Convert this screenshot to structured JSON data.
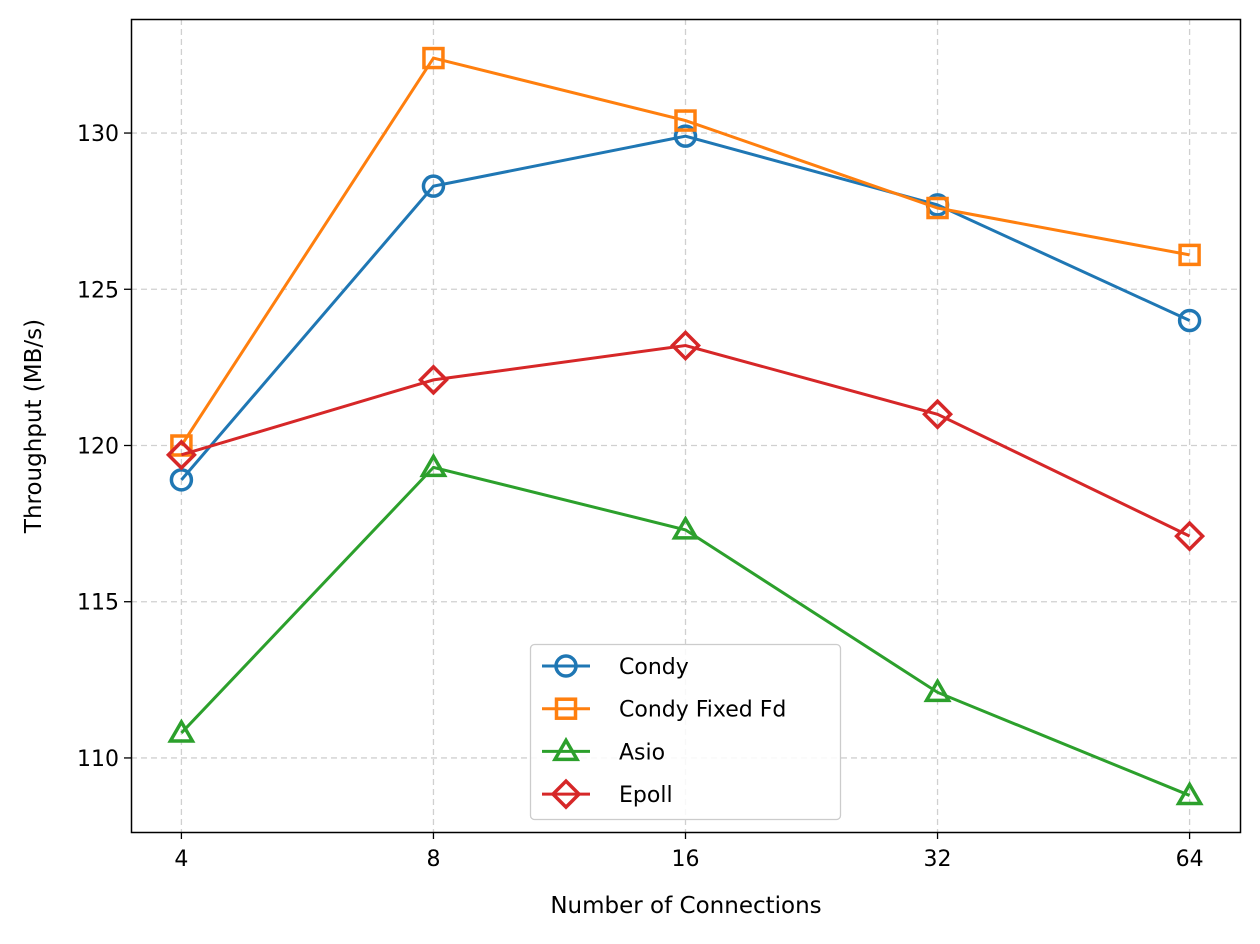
{
  "chart_data": {
    "type": "line",
    "title": "",
    "xlabel": "Number of Connections",
    "ylabel": "Throughput (MB/s)",
    "categories": [
      "4",
      "8",
      "16",
      "32",
      "64"
    ],
    "ylim": [
      107.63,
      133.65
    ],
    "yticks": [
      110,
      115,
      120,
      125,
      130
    ],
    "grid": true,
    "legend_position": "lower-center",
    "series": [
      {
        "name": "Condy",
        "color": "#1f77b4",
        "marker": "circle",
        "values": [
          118.9,
          128.3,
          129.9,
          127.7,
          124.0
        ]
      },
      {
        "name": "Condy Fixed Fd",
        "color": "#ff7f0e",
        "marker": "square",
        "values": [
          120.0,
          132.4,
          130.4,
          127.6,
          126.1
        ]
      },
      {
        "name": "Asio",
        "color": "#2ca02c",
        "marker": "triangle",
        "values": [
          110.8,
          119.3,
          117.3,
          112.1,
          108.8
        ]
      },
      {
        "name": "Epoll",
        "color": "#d62728",
        "marker": "diamond",
        "values": [
          119.7,
          122.1,
          123.2,
          121.0,
          117.1
        ]
      }
    ]
  }
}
